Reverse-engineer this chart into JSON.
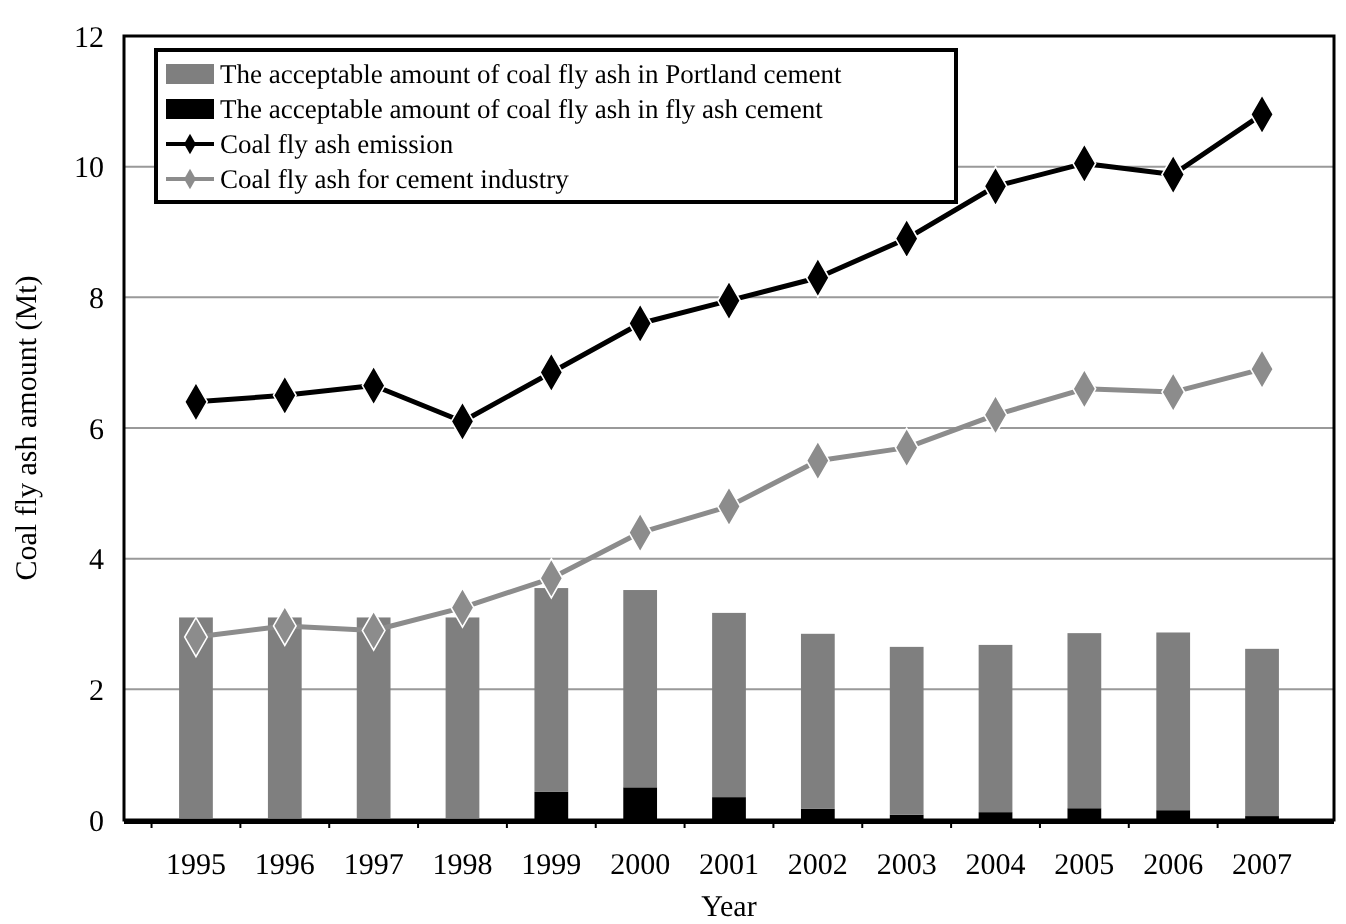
{
  "chart_data": {
    "type": "bar",
    "xlabel": "Year",
    "ylabel": "Coal fly ash amount (Mt)",
    "categories": [
      "1995",
      "1996",
      "1997",
      "1998",
      "1999",
      "2000",
      "2001",
      "2002",
      "2003",
      "2004",
      "2005",
      "2006",
      "2007"
    ],
    "stacked": true,
    "ylim": [
      0,
      12
    ],
    "yticks": [
      0,
      2,
      4,
      6,
      8,
      10,
      12
    ],
    "grid": "y",
    "legend": "top left",
    "marker": "diamond",
    "line_style": "solid",
    "series": [
      {
        "name": "The acceptable amount of coal fly ash in fly ash cement",
        "color": "#000000",
        "values": [
          0.02,
          0.02,
          0.02,
          0.02,
          0.43,
          0.5,
          0.35,
          0.17,
          0.08,
          0.12,
          0.18,
          0.15,
          0.06
        ]
      },
      {
        "name": "The acceptable amount of coal fly ash in Portland cement",
        "color": "#7f7f7f",
        "values": [
          3.08,
          3.08,
          3.08,
          3.08,
          3.12,
          3.02,
          2.82,
          2.68,
          2.57,
          2.56,
          2.68,
          2.72,
          2.56
        ]
      },
      {
        "name": "Coal fly ash emission",
        "type": "line",
        "color": "#000000",
        "values": [
          6.4,
          6.5,
          6.65,
          6.1,
          6.85,
          7.6,
          7.95,
          8.3,
          8.9,
          9.7,
          10.05,
          9.88,
          10.8
        ]
      },
      {
        "name": "Coal fly ash for cement industry",
        "type": "line",
        "color": "#8c8c8c",
        "values": [
          2.8,
          2.97,
          2.9,
          3.25,
          3.7,
          4.4,
          4.8,
          5.5,
          5.7,
          6.2,
          6.6,
          6.55,
          6.9
        ]
      }
    ]
  }
}
